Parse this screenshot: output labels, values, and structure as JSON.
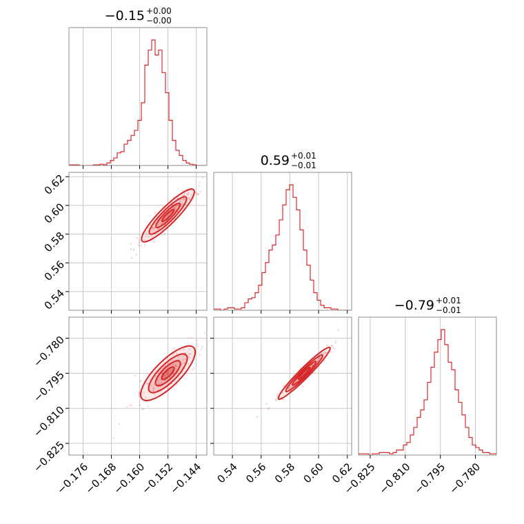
{
  "chart_data": {
    "type": "corner",
    "color": "#d62728",
    "grid": true,
    "parameters": [
      {
        "range": [
          -0.18,
          -0.141
        ],
        "ticks": [
          -0.176,
          -0.168,
          -0.16,
          -0.152,
          -0.144
        ],
        "tick_labels": [
          "−0.176",
          "−0.168",
          "−0.160",
          "−0.152",
          "−0.144"
        ]
      },
      {
        "range": [
          0.527,
          0.623
        ],
        "ticks": [
          0.54,
          0.56,
          0.58,
          0.6,
          0.62
        ],
        "tick_labels": [
          "0.54",
          "0.56",
          "0.58",
          "0.60",
          "0.62"
        ]
      },
      {
        "range": [
          -0.83,
          -0.771
        ],
        "ticks": [
          -0.825,
          -0.81,
          -0.795,
          -0.78
        ],
        "tick_labels": [
          "−0.825",
          "−0.810",
          "−0.795",
          "−0.780"
        ]
      }
    ],
    "titles": [
      {
        "main": "−0.15",
        "upper": "+0.00",
        "lower": "−0.00"
      },
      {
        "main": "0.59",
        "upper": "+0.01",
        "lower": "−0.01"
      },
      {
        "main": "−0.79",
        "upper": "+0.01",
        "lower": "−0.01"
      }
    ],
    "histograms": [
      {
        "counts": [
          0.005,
          0.005,
          0.005,
          0,
          0,
          0,
          0,
          0.005,
          0.005,
          0.01,
          0.005,
          0.02,
          0.04,
          0.06,
          0.1,
          0.11,
          0.17,
          0.2,
          0.24,
          0.28,
          0.36,
          0.5,
          0.8,
          0.92,
          1,
          0.88,
          0.92,
          0.74,
          0.58,
          0.36,
          0.2,
          0.12,
          0.08,
          0.04,
          0.02,
          0.01,
          0.005,
          0,
          0,
          0
        ]
      },
      {
        "counts": [
          0.01,
          0.01,
          0,
          0.01,
          0.02,
          0.02,
          0.01,
          0.01,
          0.02,
          0.06,
          0.09,
          0.1,
          0.14,
          0.2,
          0.3,
          0.38,
          0.48,
          0.52,
          0.6,
          0.72,
          0.84,
          0.96,
          1,
          0.9,
          0.8,
          0.64,
          0.48,
          0.36,
          0.24,
          0.14,
          0.08,
          0.04,
          0.02,
          0.02,
          0.01,
          0.01,
          0,
          0,
          0,
          0
        ]
      },
      {
        "counts": [
          0.01,
          0.01,
          0.01,
          0,
          0.01,
          0.01,
          0.02,
          0.02,
          0.02,
          0.01,
          0.02,
          0.04,
          0.04,
          0.08,
          0.1,
          0.16,
          0.22,
          0.3,
          0.36,
          0.44,
          0.58,
          0.7,
          0.82,
          0.92,
          1,
          0.88,
          0.74,
          0.68,
          0.52,
          0.42,
          0.32,
          0.22,
          0.14,
          0.08,
          0.06,
          0.04,
          0.02,
          0.02,
          0.01,
          0.01
        ]
      }
    ],
    "pairs": [
      {
        "x_param": 0,
        "y_param": 1,
        "center": [
          -0.152,
          0.593
        ],
        "corr": 0.99
      },
      {
        "x_param": 0,
        "y_param": 2,
        "center": [
          -0.152,
          -0.795
        ],
        "corr": 0.98
      },
      {
        "x_param": 1,
        "y_param": 2,
        "center": [
          0.59,
          -0.795
        ],
        "corr": 0.998
      }
    ]
  }
}
